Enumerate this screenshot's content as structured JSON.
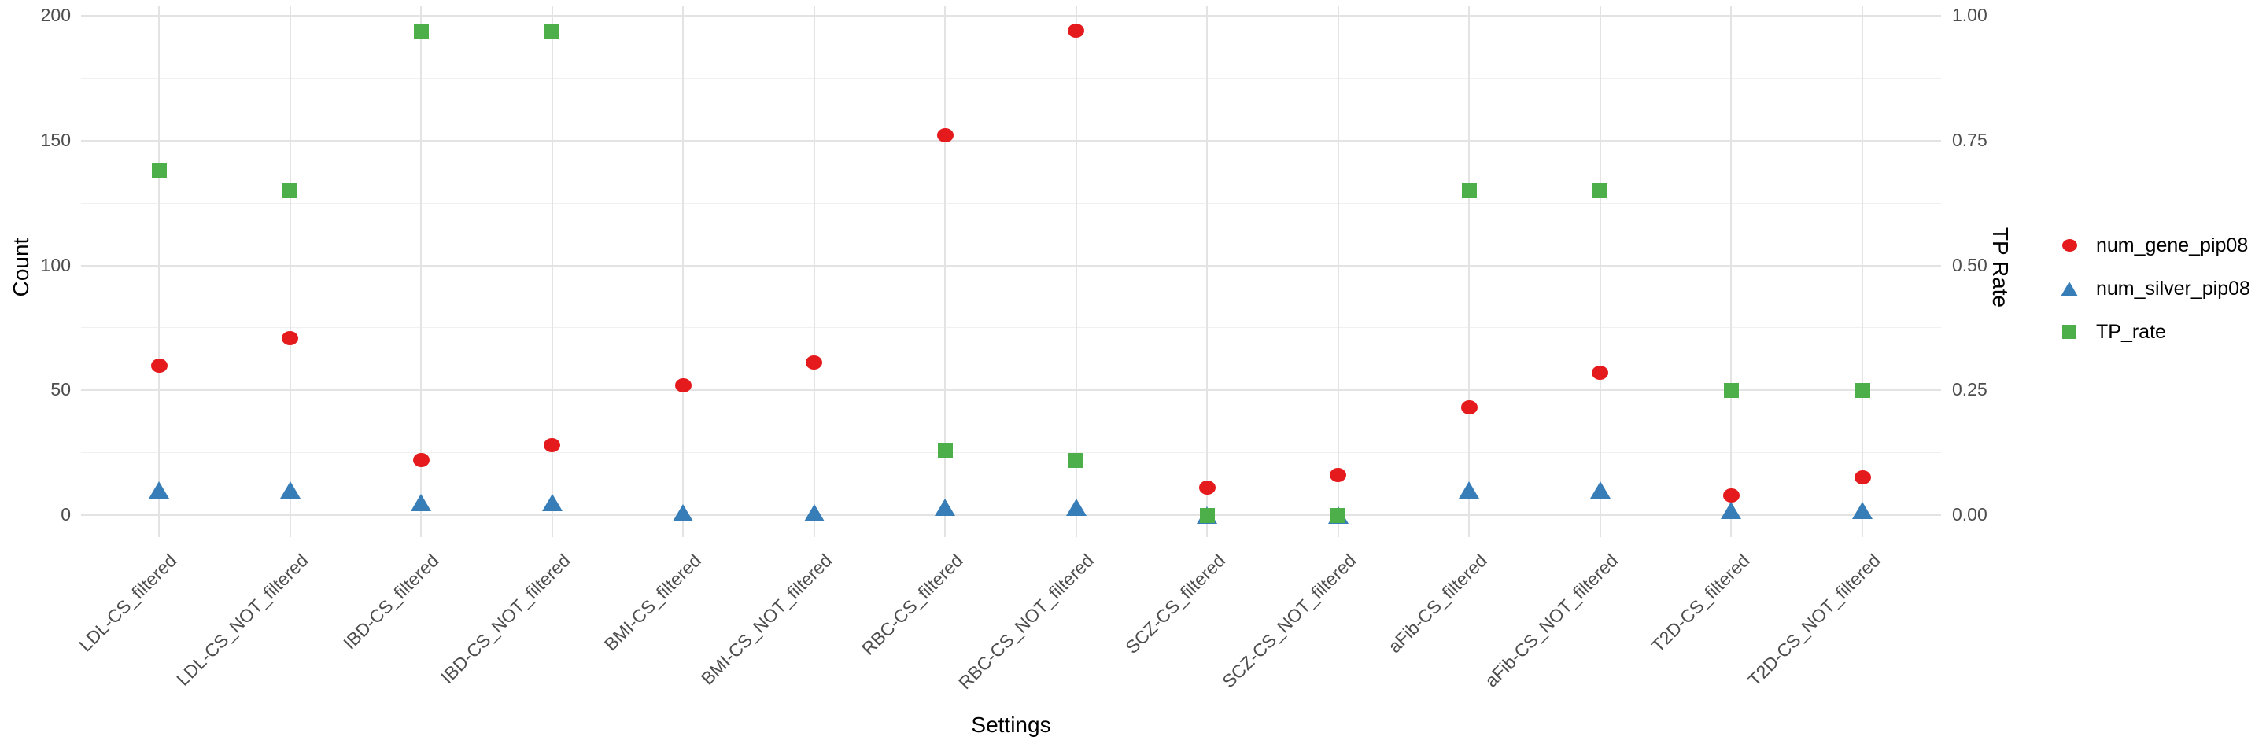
{
  "chart_data": {
    "type": "scatter",
    "title": "",
    "xlabel": "Settings",
    "ylabel_left": "Count",
    "ylabel_right": "TP Rate",
    "grid": "major+minor horizontal, major vertical at categories",
    "legend_position": "right-center",
    "background": "#ffffff",
    "ylim_left": [
      0,
      200
    ],
    "ylim_right": [
      0.0,
      1.0
    ],
    "left_axis_ticks": [
      "0",
      "50",
      "100",
      "150",
      "200"
    ],
    "right_axis_ticks": [
      "0.00",
      "0.25",
      "0.50",
      "0.75",
      "1.00"
    ],
    "categories": [
      "LDL-CS_filtered",
      "LDL-CS_NOT_filtered",
      "IBD-CS_filtered",
      "IBD-CS_NOT_filtered",
      "BMI-CS_filtered",
      "BMI-CS_NOT_filtered",
      "RBC-CS_filtered",
      "RBC-CS_NOT_filtered",
      "SCZ-CS_filtered",
      "SCZ-CS_NOT_filtered",
      "aFib-CS_filtered",
      "aFib-CS_NOT_filtered",
      "T2D-CS_filtered",
      "T2D-CS_NOT_filtered"
    ],
    "series": [
      {
        "name": "num_gene_pip08",
        "marker": "circle",
        "color": "#E41A1C",
        "axis": "left",
        "values": [
          60,
          71,
          22,
          28,
          52,
          61,
          152,
          194,
          11,
          16,
          43,
          57,
          8,
          15
        ]
      },
      {
        "name": "num_silver_pip08",
        "marker": "triangle",
        "color": "#377EB8",
        "axis": "left",
        "values": [
          10,
          10,
          5,
          5,
          1,
          1,
          3,
          3,
          0,
          0,
          10,
          10,
          2,
          2
        ]
      },
      {
        "name": "TP_rate",
        "marker": "square",
        "color": "#4DAF4A",
        "axis": "right",
        "values": [
          0.69,
          0.65,
          0.97,
          0.97,
          null,
          null,
          0.13,
          0.11,
          0.0,
          0.0,
          0.65,
          0.65,
          0.25,
          0.25
        ]
      }
    ]
  },
  "colors": {
    "grid_major": "#e3e3e3",
    "grid_minor": "#f0f0f0",
    "tick_text": "#4d4d4d",
    "title_text": "#000000"
  }
}
